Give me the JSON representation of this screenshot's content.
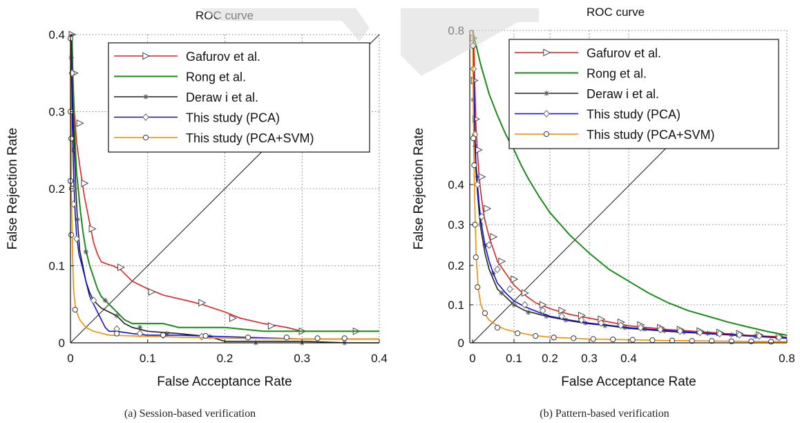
{
  "figure": {
    "captions": [
      "(a) Session-based verification",
      "(b) Pattern-based verification"
    ]
  },
  "colors": {
    "gafurov": "#e02020",
    "rong": "#1a8a1a",
    "derawi": "#202020",
    "pca": "#1010d0",
    "pca_svm": "#f28c00",
    "watermark": "#d9d9d9"
  },
  "chart_data": [
    {
      "type": "line",
      "title": "ROC curve",
      "xlabel": "False Acceptance Rate",
      "ylabel": "False Rejection Rate",
      "xlim": [
        0,
        0.4
      ],
      "ylim": [
        0,
        0.4
      ],
      "xticks": [
        0,
        0.1,
        0.2,
        0.3,
        0.4
      ],
      "xtick_labels": [
        "0",
        "0.1",
        "0.2",
        "0.3",
        "0.4"
      ],
      "yticks": [
        0,
        0.1,
        0.2,
        0.3,
        0.4
      ],
      "ytick_labels": [
        "0",
        "0.1",
        "0.2",
        "0.3",
        "0.4"
      ],
      "grid": true,
      "legend": "top-right",
      "diagonal": [
        [
          0,
          0
        ],
        [
          0.4,
          0.4
        ]
      ],
      "series": [
        {
          "name": "Gafurov et al.",
          "color": "#e02020",
          "marker": "triangle-right",
          "x": [
            0.002,
            0.003,
            0.005,
            0.008,
            0.012,
            0.018,
            0.025,
            0.03,
            0.035,
            0.04,
            0.048,
            0.055,
            0.065,
            0.08,
            0.1,
            0.12,
            0.15,
            0.17,
            0.2,
            0.22,
            0.25,
            0.28,
            0.3,
            0.33,
            0.36,
            0.4
          ],
          "y": [
            0.4,
            0.35,
            0.3,
            0.26,
            0.23,
            0.19,
            0.155,
            0.13,
            0.115,
            0.105,
            0.102,
            0.1,
            0.095,
            0.08,
            0.07,
            0.062,
            0.055,
            0.05,
            0.04,
            0.032,
            0.025,
            0.02,
            0.015,
            0.015,
            0.015,
            0.015
          ],
          "marker_x": [
            0.002,
            0.005,
            0.012,
            0.018,
            0.028,
            0.065,
            0.105,
            0.17,
            0.21,
            0.26,
            0.3,
            0.37
          ],
          "marker_y": [
            0.4,
            0.35,
            0.285,
            0.207,
            0.148,
            0.098,
            0.066,
            0.052,
            0.032,
            0.022,
            0.015,
            0.015
          ]
        },
        {
          "name": "Rong et al.",
          "color": "#1a8a1a",
          "marker": "none",
          "x": [
            0.002,
            0.004,
            0.006,
            0.008,
            0.01,
            0.013,
            0.016,
            0.02,
            0.025,
            0.03,
            0.035,
            0.04,
            0.05,
            0.06,
            0.07,
            0.08,
            0.1,
            0.12,
            0.14,
            0.18,
            0.2,
            0.25,
            0.3,
            0.4
          ],
          "y": [
            0.4,
            0.3,
            0.26,
            0.22,
            0.2,
            0.17,
            0.145,
            0.12,
            0.1,
            0.085,
            0.07,
            0.06,
            0.05,
            0.04,
            0.03,
            0.025,
            0.025,
            0.025,
            0.02,
            0.02,
            0.02,
            0.015,
            0.015,
            0.015
          ],
          "marker_x": [],
          "marker_y": []
        },
        {
          "name": "Deraw i et al.",
          "color": "#202020",
          "marker": "star",
          "x": [
            0.001,
            0.002,
            0.003,
            0.005,
            0.007,
            0.009,
            0.012,
            0.016,
            0.02,
            0.025,
            0.03,
            0.035,
            0.04,
            0.05,
            0.06,
            0.07,
            0.08,
            0.1,
            0.14,
            0.18,
            0.2,
            0.24,
            0.3,
            0.36,
            0.4
          ],
          "y": [
            0.4,
            0.35,
            0.3,
            0.25,
            0.2,
            0.16,
            0.12,
            0.1,
            0.08,
            0.065,
            0.055,
            0.05,
            0.045,
            0.04,
            0.035,
            0.025,
            0.02,
            0.015,
            0.012,
            0.008,
            0.002,
            0.002,
            0.002,
            0.0,
            0.0
          ],
          "marker_x": [
            0.001,
            0.004,
            0.009,
            0.02,
            0.045,
            0.06,
            0.09,
            0.125,
            0.18,
            0.24,
            0.3,
            0.355
          ],
          "marker_y": [
            0.37,
            0.25,
            0.16,
            0.118,
            0.055,
            0.035,
            0.02,
            0.012,
            0.008,
            0.0,
            0.0,
            0.0
          ]
        },
        {
          "name": "This study (PCA)",
          "color": "#1010d0",
          "marker": "diamond",
          "x": [
            0.001,
            0.002,
            0.004,
            0.006,
            0.008,
            0.011,
            0.015,
            0.02,
            0.025,
            0.03,
            0.035,
            0.04,
            0.045,
            0.05,
            0.06,
            0.08,
            0.1,
            0.14,
            0.2,
            0.3,
            0.4
          ],
          "y": [
            0.4,
            0.3,
            0.22,
            0.17,
            0.14,
            0.115,
            0.1,
            0.08,
            0.06,
            0.05,
            0.04,
            0.03,
            0.02,
            0.015,
            0.015,
            0.012,
            0.01,
            0.01,
            0.008,
            0.005,
            0.005
          ],
          "marker_x": [
            0.002,
            0.004,
            0.008,
            0.03,
            0.06,
            0.09,
            0.12,
            0.17
          ],
          "marker_y": [
            0.35,
            0.18,
            0.135,
            0.055,
            0.018,
            0.012,
            0.01,
            0.008
          ]
        },
        {
          "name": "This study (PCA+SVM)",
          "color": "#f28c00",
          "marker": "circle",
          "x": [
            0.0,
            0.0,
            0.001,
            0.001,
            0.002,
            0.003,
            0.004,
            0.006,
            0.008,
            0.012,
            0.02,
            0.03,
            0.05,
            0.08,
            0.12,
            0.2,
            0.3,
            0.4
          ],
          "y": [
            0.4,
            0.35,
            0.3,
            0.2,
            0.15,
            0.1,
            0.07,
            0.05,
            0.04,
            0.03,
            0.02,
            0.015,
            0.01,
            0.009,
            0.008,
            0.006,
            0.005,
            0.005
          ],
          "marker_x": [
            0.0,
            0.0,
            0.0,
            0.001,
            0.001,
            0.002,
            0.006,
            0.06,
            0.12,
            0.175,
            0.23,
            0.28,
            0.32,
            0.355
          ],
          "marker_y": [
            0.395,
            0.3,
            0.21,
            0.14,
            0.265,
            0.2,
            0.043,
            0.012,
            0.01,
            0.009,
            0.007,
            0.007,
            0.006,
            0.006
          ]
        }
      ]
    },
    {
      "type": "line",
      "title": "ROC curve",
      "xlabel": "False Acceptance Rate",
      "ylabel": "False Rejection Rate",
      "xlim": [
        0,
        0.8
      ],
      "ylim": [
        0,
        0.8
      ],
      "xticks": [
        0,
        0.1,
        0.2,
        0.3,
        0.4,
        0.8
      ],
      "xtick_labels": [
        "0",
        "0.1",
        "0.2",
        "0.3",
        "0.4",
        "0.8"
      ],
      "yticks": [
        0,
        0.1,
        0.2,
        0.3,
        0.4,
        0.8
      ],
      "ytick_labels": [
        "0",
        "0.1",
        "0.2",
        "0.3",
        "0.4",
        "0.8"
      ],
      "grid": true,
      "legend": "top-right",
      "diagonal": [
        [
          0,
          0
        ],
        [
          0.5,
          0.5
        ]
      ],
      "series": [
        {
          "name": "Gafurov et al.",
          "color": "#e02020",
          "marker": "triangle-right",
          "x": [
            0.002,
            0.004,
            0.006,
            0.008,
            0.012,
            0.016,
            0.02,
            0.025,
            0.03,
            0.04,
            0.05,
            0.06,
            0.08,
            0.1,
            0.13,
            0.16,
            0.2,
            0.25,
            0.3,
            0.35,
            0.4,
            0.5,
            0.6,
            0.7,
            0.8
          ],
          "y": [
            0.8,
            0.72,
            0.64,
            0.56,
            0.48,
            0.42,
            0.38,
            0.34,
            0.31,
            0.27,
            0.24,
            0.21,
            0.18,
            0.15,
            0.125,
            0.105,
            0.09,
            0.075,
            0.065,
            0.055,
            0.045,
            0.035,
            0.028,
            0.02,
            0.015
          ],
          "marker_x": [
            0.002,
            0.004,
            0.008,
            0.014,
            0.022,
            0.035,
            0.05,
            0.07,
            0.1,
            0.13,
            0.18,
            0.23,
            0.28,
            0.33,
            0.38,
            0.43,
            0.48,
            0.53,
            0.58,
            0.63,
            0.68,
            0.73,
            0.78
          ],
          "marker_y": [
            0.78,
            0.67,
            0.57,
            0.49,
            0.42,
            0.34,
            0.27,
            0.21,
            0.165,
            0.13,
            0.1,
            0.085,
            0.072,
            0.062,
            0.054,
            0.047,
            0.04,
            0.035,
            0.031,
            0.027,
            0.024,
            0.021,
            0.018
          ]
        },
        {
          "name": "Rong et al.",
          "color": "#1a8a1a",
          "marker": "none",
          "x": [
            0.0,
            0.02,
            0.04,
            0.06,
            0.08,
            0.1,
            0.12,
            0.14,
            0.17,
            0.2,
            0.25,
            0.3,
            0.35,
            0.4,
            0.45,
            0.5,
            0.55,
            0.6,
            0.65,
            0.7,
            0.75,
            0.8
          ],
          "y": [
            0.8,
            0.71,
            0.635,
            0.58,
            0.53,
            0.49,
            0.45,
            0.415,
            0.37,
            0.33,
            0.275,
            0.23,
            0.19,
            0.16,
            0.13,
            0.105,
            0.085,
            0.07,
            0.055,
            0.042,
            0.03,
            0.02
          ],
          "marker_x": [],
          "marker_y": []
        },
        {
          "name": "Deraw i et al.",
          "color": "#202020",
          "marker": "star",
          "x": [
            0.001,
            0.002,
            0.004,
            0.006,
            0.008,
            0.012,
            0.016,
            0.02,
            0.03,
            0.04,
            0.05,
            0.06,
            0.08,
            0.1,
            0.13,
            0.17,
            0.2,
            0.25,
            0.3,
            0.35,
            0.4,
            0.5,
            0.6,
            0.7,
            0.8
          ],
          "y": [
            0.8,
            0.7,
            0.6,
            0.5,
            0.44,
            0.38,
            0.33,
            0.29,
            0.23,
            0.19,
            0.165,
            0.14,
            0.12,
            0.1,
            0.085,
            0.075,
            0.068,
            0.058,
            0.05,
            0.045,
            0.038,
            0.03,
            0.024,
            0.018,
            0.012
          ],
          "marker_x": [
            0.002,
            0.006,
            0.012,
            0.02,
            0.03,
            0.05,
            0.07,
            0.1,
            0.14,
            0.19,
            0.24,
            0.29,
            0.34,
            0.39,
            0.44,
            0.49,
            0.54,
            0.6,
            0.66,
            0.72,
            0.78
          ],
          "marker_y": [
            0.62,
            0.5,
            0.42,
            0.3,
            0.25,
            0.18,
            0.13,
            0.1,
            0.08,
            0.07,
            0.06,
            0.052,
            0.045,
            0.04,
            0.036,
            0.032,
            0.028,
            0.025,
            0.021,
            0.017,
            0.013
          ]
        },
        {
          "name": "This study (PCA)",
          "color": "#1010d0",
          "marker": "diamond",
          "x": [
            0.001,
            0.002,
            0.004,
            0.006,
            0.008,
            0.012,
            0.016,
            0.02,
            0.03,
            0.04,
            0.05,
            0.06,
            0.08,
            0.1,
            0.13,
            0.17,
            0.2,
            0.25,
            0.3,
            0.35,
            0.4,
            0.5,
            0.6,
            0.7,
            0.8
          ],
          "y": [
            0.8,
            0.71,
            0.62,
            0.53,
            0.46,
            0.4,
            0.35,
            0.31,
            0.25,
            0.21,
            0.18,
            0.155,
            0.13,
            0.11,
            0.095,
            0.08,
            0.07,
            0.06,
            0.052,
            0.046,
            0.04,
            0.032,
            0.025,
            0.019,
            0.013
          ],
          "marker_x": [
            0.002,
            0.006,
            0.012,
            0.022,
            0.04,
            0.06,
            0.09,
            0.13,
            0.18,
            0.23,
            0.28,
            0.33,
            0.38,
            0.43,
            0.48,
            0.53,
            0.58,
            0.63,
            0.68,
            0.73,
            0.78
          ],
          "marker_y": [
            0.7,
            0.53,
            0.4,
            0.32,
            0.25,
            0.19,
            0.14,
            0.1,
            0.085,
            0.07,
            0.06,
            0.052,
            0.046,
            0.04,
            0.035,
            0.031,
            0.027,
            0.024,
            0.021,
            0.018,
            0.014
          ]
        },
        {
          "name": "This study (PCA+SVM)",
          "color": "#f28c00",
          "marker": "circle",
          "x": [
            0.0,
            0.001,
            0.002,
            0.003,
            0.004,
            0.006,
            0.008,
            0.01,
            0.014,
            0.02,
            0.03,
            0.04,
            0.06,
            0.08,
            0.1,
            0.15,
            0.2,
            0.3,
            0.4,
            0.5,
            0.6,
            0.7,
            0.8
          ],
          "y": [
            0.8,
            0.7,
            0.6,
            0.5,
            0.42,
            0.33,
            0.25,
            0.2,
            0.14,
            0.1,
            0.075,
            0.06,
            0.045,
            0.035,
            0.03,
            0.02,
            0.015,
            0.01,
            0.008,
            0.006,
            0.005,
            0.004,
            0.003
          ],
          "marker_x": [
            0.001,
            0.002,
            0.004,
            0.006,
            0.008,
            0.012,
            0.03,
            0.06,
            0.11,
            0.16,
            0.21,
            0.26,
            0.31,
            0.36,
            0.41,
            0.46,
            0.51,
            0.56,
            0.61,
            0.66,
            0.71,
            0.76
          ],
          "marker_y": [
            0.76,
            0.52,
            0.45,
            0.3,
            0.22,
            0.145,
            0.078,
            0.04,
            0.025,
            0.018,
            0.014,
            0.012,
            0.01,
            0.009,
            0.008,
            0.007,
            0.006,
            0.005,
            0.005,
            0.004,
            0.004,
            0.003
          ]
        }
      ]
    }
  ]
}
